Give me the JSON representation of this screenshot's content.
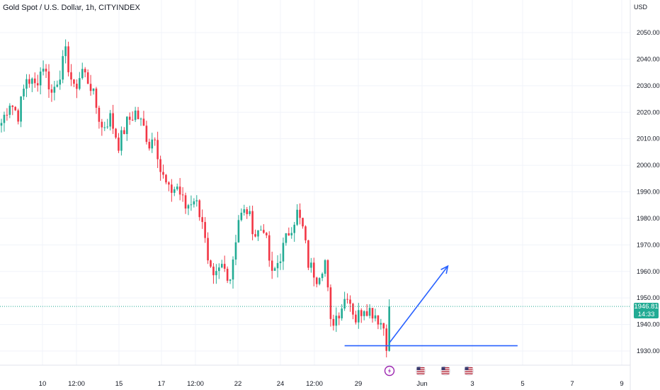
{
  "header": {
    "title": "Gold Spot / U.S. Dollar, 1h, CITYINDEX",
    "currency": "USD"
  },
  "price_tag": {
    "price": "1946.81",
    "countdown": "14:33",
    "color": "#22ab94"
  },
  "colors": {
    "up": "#22ab94",
    "down": "#f23645",
    "drawing": "#2962ff",
    "grid": "#f0f3fa",
    "current_price_line": "#22ab94"
  },
  "events": [
    {
      "icon": "lightning-icon",
      "color": "#9c27b0"
    },
    {
      "icon": "us-flag-icon",
      "color": "#b22234"
    },
    {
      "icon": "us-flag-icon",
      "color": "#b22234"
    },
    {
      "icon": "us-flag-icon",
      "color": "#b22234"
    }
  ],
  "chart_data": {
    "type": "candlestick",
    "y_range": [
      1928,
      2058
    ],
    "y_ticks": [
      1930,
      1940,
      1950,
      1960,
      1970,
      1980,
      1990,
      2000,
      2010,
      2020,
      2030,
      2040,
      2050
    ],
    "y_tick_labels": [
      "1930.00",
      "1940.00",
      "1950.00",
      "1960.00",
      "1970.00",
      "1980.00",
      "1990.00",
      "2000.00",
      "2010.00",
      "2020.00",
      "2030.00",
      "2040.00",
      "2050.00"
    ],
    "x_tick_labels": [
      "10",
      "12:00",
      "15",
      "17",
      "12:00",
      "22",
      "24",
      "12:00",
      "29",
      "Jun",
      "3",
      "5",
      "7",
      "9"
    ],
    "current_price": 1946.81,
    "price_path": [
      {
        "t": 0,
        "p": 2016
      },
      {
        "t": 3,
        "p": 2024
      },
      {
        "t": 6,
        "p": 2019
      },
      {
        "t": 9,
        "p": 2033
      },
      {
        "t": 12,
        "p": 2030
      },
      {
        "t": 15,
        "p": 2038
      },
      {
        "t": 18,
        "p": 2027
      },
      {
        "t": 21,
        "p": 2035
      },
      {
        "t": 23,
        "p": 2042
      },
      {
        "t": 26,
        "p": 2028
      },
      {
        "t": 29,
        "p": 2036
      },
      {
        "t": 32,
        "p": 2030
      },
      {
        "t": 34,
        "p": 2022
      },
      {
        "t": 36,
        "p": 2014
      },
      {
        "t": 39,
        "p": 2018
      },
      {
        "t": 42,
        "p": 2008
      },
      {
        "t": 45,
        "p": 2016
      },
      {
        "t": 48,
        "p": 2020
      },
      {
        "t": 51,
        "p": 2014
      },
      {
        "t": 53,
        "p": 2008
      },
      {
        "t": 55,
        "p": 2012
      },
      {
        "t": 57,
        "p": 1998
      },
      {
        "t": 60,
        "p": 1990
      },
      {
        "t": 63,
        "p": 1992
      },
      {
        "t": 66,
        "p": 1984
      },
      {
        "t": 69,
        "p": 1988
      },
      {
        "t": 72,
        "p": 1980
      },
      {
        "t": 74,
        "p": 1962
      },
      {
        "t": 76,
        "p": 1956
      },
      {
        "t": 79,
        "p": 1962
      },
      {
        "t": 82,
        "p": 1958
      },
      {
        "t": 85,
        "p": 1980
      },
      {
        "t": 88,
        "p": 1983
      },
      {
        "t": 91,
        "p": 1974
      },
      {
        "t": 94,
        "p": 1977
      },
      {
        "t": 97,
        "p": 1958
      },
      {
        "t": 100,
        "p": 1966
      },
      {
        "t": 103,
        "p": 1975
      },
      {
        "t": 106,
        "p": 1982
      },
      {
        "t": 108,
        "p": 1976
      },
      {
        "t": 110,
        "p": 1963
      },
      {
        "t": 113,
        "p": 1958
      },
      {
        "t": 116,
        "p": 1964
      },
      {
        "t": 118,
        "p": 1940
      },
      {
        "t": 121,
        "p": 1945
      },
      {
        "t": 124,
        "p": 1952
      },
      {
        "t": 127,
        "p": 1942
      },
      {
        "t": 130,
        "p": 1947
      },
      {
        "t": 134,
        "p": 1944
      },
      {
        "t": 137,
        "p": 1939
      },
      {
        "t": 138,
        "p": 1933
      },
      {
        "t": 139,
        "p": 1946.81
      }
    ],
    "support_line": {
      "from_t": 123,
      "to_t": 185,
      "price": 1932
    },
    "projection_arrow": {
      "from_t": 139,
      "from_p": 1933,
      "to_t": 160,
      "to_p": 1962
    }
  }
}
